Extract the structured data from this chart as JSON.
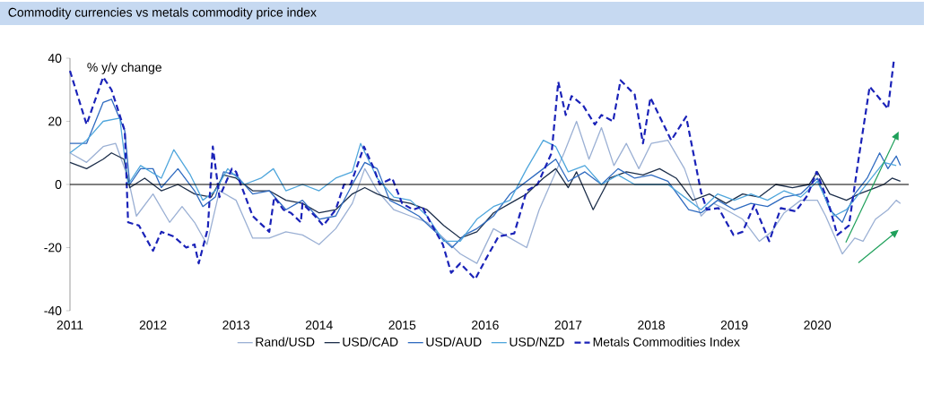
{
  "chart_data": {
    "type": "line",
    "title": "Commodity currencies vs metals commodity price index",
    "ylabel": "% y/y change",
    "xlim": [
      2011,
      2021.1
    ],
    "xticks": [
      2011,
      2012,
      2013,
      2014,
      2015,
      2016,
      2017,
      2018,
      2019,
      2020
    ],
    "ylim": [
      -40,
      40
    ],
    "yticks": [
      -40,
      -20,
      0,
      20,
      40
    ],
    "grid": false,
    "legend": "bottom",
    "ref_lines": [
      {
        "axis": "y",
        "value": 0,
        "color": "#000000"
      }
    ],
    "series": [
      {
        "name": "Rand/USD",
        "color": "#9bb0d4",
        "x": [
          2011,
          2011.2,
          2011.4,
          2011.55,
          2011.7,
          2011.8,
          2012.0,
          2012.2,
          2012.35,
          2012.5,
          2012.65,
          2012.8,
          2013.0,
          2013.2,
          2013.4,
          2013.6,
          2013.8,
          2014.0,
          2014.2,
          2014.4,
          2014.55,
          2014.7,
          2014.9,
          2015.1,
          2015.3,
          2015.5,
          2015.7,
          2015.9,
          2016.1,
          2016.3,
          2016.5,
          2016.65,
          2016.8,
          2016.95,
          2017.1,
          2017.25,
          2017.4,
          2017.55,
          2017.7,
          2017.85,
          2018.0,
          2018.2,
          2018.4,
          2018.6,
          2018.75,
          2018.9,
          2019.1,
          2019.3,
          2019.45,
          2019.6,
          2019.8,
          2020.0,
          2020.1,
          2020.3,
          2020.45,
          2020.55,
          2020.7,
          2020.85,
          2020.95,
          2021.0
        ],
        "values": [
          10,
          7,
          12,
          13,
          2,
          -10,
          -3,
          -12,
          -7,
          -12,
          -19,
          -2,
          -5,
          -17,
          -17,
          -15,
          -16,
          -19,
          -14,
          -6,
          5,
          -2,
          -8,
          -10,
          -12,
          -17,
          -22,
          -25,
          -14,
          -17,
          -20,
          -8,
          1,
          10,
          20,
          8,
          18,
          6,
          13,
          5,
          13,
          14,
          5,
          -10,
          -6,
          -8,
          -11,
          -18,
          -15,
          -9,
          -5,
          -5,
          -10,
          -22,
          -17,
          -18,
          -11,
          -8,
          -5,
          -6
        ]
      },
      {
        "name": "USD/CAD",
        "color": "#1c2e4a",
        "x": [
          2011,
          2011.2,
          2011.4,
          2011.5,
          2011.65,
          2011.72,
          2011.9,
          2012.1,
          2012.3,
          2012.5,
          2012.7,
          2012.85,
          2013.0,
          2013.2,
          2013.4,
          2013.6,
          2013.8,
          2014.0,
          2014.2,
          2014.4,
          2014.55,
          2014.7,
          2014.9,
          2015.1,
          2015.3,
          2015.5,
          2015.7,
          2015.9,
          2016.1,
          2016.3,
          2016.5,
          2016.7,
          2016.85,
          2017.0,
          2017.1,
          2017.3,
          2017.5,
          2017.7,
          2017.9,
          2018.1,
          2018.3,
          2018.5,
          2018.7,
          2018.9,
          2019.1,
          2019.3,
          2019.5,
          2019.7,
          2019.9,
          2020.0,
          2020.15,
          2020.35,
          2020.5,
          2020.7,
          2020.8,
          2020.9,
          2021.0
        ],
        "values": [
          7,
          5,
          8,
          10,
          8,
          -1,
          2,
          -2,
          0,
          -3,
          -4,
          3,
          2,
          -2,
          -2,
          -5,
          -6,
          -9,
          -8,
          -3,
          -1,
          -3,
          -5,
          -6,
          -8,
          -13,
          -17,
          -15,
          -9,
          -6,
          -3,
          2,
          5,
          -1,
          4,
          -8,
          2,
          4,
          3,
          5,
          2,
          -5,
          -3,
          -6,
          -3,
          -4,
          0,
          -1,
          0,
          4,
          -3,
          -5,
          -3,
          -1,
          0,
          2,
          1
        ]
      },
      {
        "name": "USD/AUD",
        "color": "#2f6bc0",
        "x": [
          2011,
          2011.2,
          2011.4,
          2011.5,
          2011.66,
          2011.72,
          2011.85,
          2012.0,
          2012.1,
          2012.3,
          2012.5,
          2012.6,
          2012.75,
          2012.85,
          2013.0,
          2013.2,
          2013.4,
          2013.6,
          2013.8,
          2014.0,
          2014.2,
          2014.4,
          2014.55,
          2014.7,
          2014.85,
          2015.0,
          2015.2,
          2015.4,
          2015.6,
          2015.75,
          2015.9,
          2016.1,
          2016.3,
          2016.5,
          2016.7,
          2016.85,
          2017.0,
          2017.2,
          2017.4,
          2017.6,
          2017.8,
          2018.0,
          2018.2,
          2018.45,
          2018.6,
          2018.8,
          2019.0,
          2019.2,
          2019.4,
          2019.6,
          2019.8,
          2020.0,
          2020.15,
          2020.3,
          2020.45,
          2020.6,
          2020.75,
          2020.85,
          2020.95,
          2021.0
        ],
        "values": [
          13,
          13,
          26,
          27,
          17,
          0,
          5,
          5,
          -1,
          5,
          -2,
          -7,
          -4,
          4,
          3,
          -3,
          -2,
          -8,
          -5,
          -11,
          -10,
          0,
          7,
          5,
          -5,
          -7,
          -10,
          -15,
          -20,
          -16,
          -14,
          -10,
          -3,
          1,
          5,
          8,
          1,
          4,
          0,
          5,
          2,
          3,
          1,
          -8,
          -9,
          -5,
          -8,
          -6,
          -7,
          -4,
          -3,
          2,
          -8,
          -12,
          -3,
          2,
          10,
          5,
          9,
          6
        ]
      },
      {
        "name": "USD/NZD",
        "color": "#4fa6dc",
        "x": [
          2011,
          2011.2,
          2011.4,
          2011.6,
          2011.7,
          2011.85,
          2012.1,
          2012.25,
          2012.45,
          2012.6,
          2012.75,
          2012.9,
          2013.1,
          2013.3,
          2013.45,
          2013.6,
          2013.8,
          2014.0,
          2014.2,
          2014.4,
          2014.5,
          2014.7,
          2014.9,
          2015.1,
          2015.3,
          2015.5,
          2015.7,
          2015.9,
          2016.1,
          2016.3,
          2016.5,
          2016.7,
          2016.85,
          2017.0,
          2017.2,
          2017.4,
          2017.6,
          2017.8,
          2018.0,
          2018.2,
          2018.45,
          2018.6,
          2018.8,
          2019.0,
          2019.2,
          2019.4,
          2019.6,
          2019.8,
          2020.0,
          2020.2,
          2020.35,
          2020.5,
          2020.65,
          2020.8,
          2020.95
        ],
        "values": [
          10,
          14,
          20,
          21,
          0,
          6,
          2,
          11,
          3,
          -5,
          -2,
          5,
          0,
          2,
          5,
          -2,
          0,
          -2,
          2,
          4,
          13,
          2,
          -4,
          -5,
          -10,
          -18,
          -18,
          -11,
          -7,
          -5,
          5,
          14,
          12,
          4,
          6,
          0,
          3,
          0,
          0,
          0,
          -5,
          -8,
          -3,
          -5,
          -3,
          -5,
          -2,
          -4,
          1,
          -10,
          -8,
          -3,
          2,
          7,
          6
        ]
      },
      {
        "name": "Metals Commodities Index",
        "color": "#1a22b8",
        "line_style": "dashed",
        "x": [
          2011,
          2011.2,
          2011.4,
          2011.5,
          2011.66,
          2011.7,
          2011.83,
          2012.0,
          2012.1,
          2012.25,
          2012.4,
          2012.5,
          2012.55,
          2012.66,
          2012.72,
          2012.8,
          2012.95,
          2013.0,
          2013.2,
          2013.4,
          2013.46,
          2013.57,
          2013.66,
          2013.78,
          2013.8,
          2013.95,
          2014.05,
          2014.2,
          2014.3,
          2014.38,
          2014.54,
          2014.66,
          2014.73,
          2014.88,
          2015.0,
          2015.13,
          2015.24,
          2015.34,
          2015.49,
          2015.59,
          2015.7,
          2015.88,
          2016.0,
          2016.16,
          2016.35,
          2016.5,
          2016.63,
          2016.8,
          2016.88,
          2016.97,
          2017.04,
          2017.18,
          2017.32,
          2017.4,
          2017.54,
          2017.63,
          2017.8,
          2017.9,
          2017.99,
          2018.24,
          2018.42,
          2018.6,
          2018.67,
          2018.81,
          2018.99,
          2019.1,
          2019.24,
          2019.42,
          2019.56,
          2019.74,
          2019.88,
          2019.99,
          2020.13,
          2020.24,
          2020.38,
          2020.49,
          2020.63,
          2020.74,
          2020.85,
          2020.92
        ],
        "values": [
          36,
          19,
          34,
          30,
          17,
          -12,
          -13,
          -21,
          -15,
          -16.5,
          -20,
          -19,
          -25,
          -14,
          12,
          -4,
          5,
          4,
          -10,
          -15,
          -4,
          -8,
          -9,
          -12,
          -6,
          -10,
          -13,
          -8,
          0,
          0,
          12,
          5,
          0,
          2,
          -6,
          -8,
          -7,
          -12,
          -19,
          -28,
          -25,
          -30,
          -24,
          -16.5,
          -15.5,
          -2,
          0,
          10,
          32.5,
          22,
          28,
          25,
          19,
          22,
          20,
          33,
          28.5,
          13,
          27.5,
          14,
          21.5,
          -2.5,
          -8,
          -7.5,
          -16,
          -15,
          -6.5,
          -18,
          -7.5,
          -8.5,
          -3.5,
          4,
          -5.5,
          -16,
          -13,
          7,
          31,
          27.5,
          24,
          39
        ]
      }
    ]
  }
}
